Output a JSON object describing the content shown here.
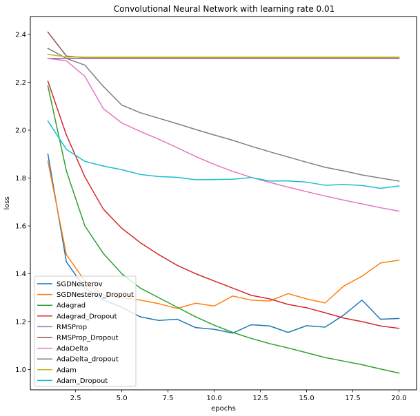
{
  "chart_data": {
    "type": "line",
    "title": "Convolutional Neural Network with learning rate 0.01",
    "xlabel": "epochs",
    "ylabel": "loss",
    "xlim": [
      0.05,
      20.95
    ],
    "ylim": [
      0.915,
      2.475
    ],
    "xticks": [
      2.5,
      5.0,
      7.5,
      10.0,
      12.5,
      15.0,
      17.5,
      20.0
    ],
    "xtick_labels": [
      "2.5",
      "5.0",
      "7.5",
      "10.0",
      "12.5",
      "15.0",
      "17.5",
      "20.0"
    ],
    "yticks": [
      1.0,
      1.2,
      1.4,
      1.6,
      1.8,
      2.0,
      2.2,
      2.4
    ],
    "ytick_labels": [
      "1.0",
      "1.2",
      "1.4",
      "1.6",
      "1.8",
      "2.0",
      "2.2",
      "2.4"
    ],
    "grid": false,
    "legend_position": "lower-left",
    "x": [
      1,
      2,
      3,
      4,
      5,
      6,
      7,
      8,
      9,
      10,
      11,
      12,
      13,
      14,
      15,
      16,
      17,
      18,
      19,
      20
    ],
    "series": [
      {
        "name": "SGDNesterov",
        "color": "#1f77b4",
        "values": [
          1.9,
          1.45,
          1.34,
          1.29,
          1.26,
          1.22,
          1.205,
          1.21,
          1.175,
          1.168,
          1.152,
          1.187,
          1.182,
          1.155,
          1.183,
          1.177,
          1.227,
          1.29,
          1.21,
          1.213
        ]
      },
      {
        "name": "SGDNesterov_Dropout",
        "color": "#ff7f0e",
        "values": [
          1.87,
          1.48,
          1.37,
          1.31,
          1.3,
          1.29,
          1.275,
          1.255,
          1.277,
          1.265,
          1.307,
          1.29,
          1.286,
          1.317,
          1.295,
          1.278,
          1.348,
          1.39,
          1.445,
          1.457
        ]
      },
      {
        "name": "Adagrad",
        "color": "#2ca02c",
        "values": [
          2.185,
          1.83,
          1.6,
          1.485,
          1.4,
          1.34,
          1.3,
          1.26,
          1.22,
          1.185,
          1.155,
          1.13,
          1.108,
          1.09,
          1.07,
          1.05,
          1.035,
          1.02,
          1.002,
          0.985
        ]
      },
      {
        "name": "Adagrad_Dropout",
        "color": "#d62728",
        "values": [
          2.205,
          1.98,
          1.805,
          1.67,
          1.59,
          1.53,
          1.48,
          1.435,
          1.4,
          1.37,
          1.34,
          1.31,
          1.295,
          1.272,
          1.258,
          1.237,
          1.215,
          1.2,
          1.182,
          1.172
        ]
      },
      {
        "name": "RMSProp",
        "color": "#9467bd",
        "values": [
          2.3,
          2.3,
          2.3,
          2.3,
          2.3,
          2.3,
          2.3,
          2.3,
          2.3,
          2.3,
          2.3,
          2.3,
          2.3,
          2.3,
          2.3,
          2.3,
          2.3,
          2.3,
          2.3,
          2.3
        ]
      },
      {
        "name": "RMSProp_Dropout",
        "color": "#8c564b",
        "values": [
          2.41,
          2.31,
          2.303,
          2.303,
          2.303,
          2.303,
          2.303,
          2.303,
          2.303,
          2.303,
          2.303,
          2.303,
          2.303,
          2.303,
          2.303,
          2.303,
          2.303,
          2.303,
          2.303,
          2.303
        ]
      },
      {
        "name": "AdaDelta",
        "color": "#e377c2",
        "values": [
          2.3,
          2.29,
          2.225,
          2.09,
          2.03,
          1.995,
          1.962,
          1.927,
          1.89,
          1.857,
          1.828,
          1.803,
          1.782,
          1.762,
          1.743,
          1.725,
          1.708,
          1.692,
          1.676,
          1.662
        ]
      },
      {
        "name": "AdaDelta_dropout",
        "color": "#7f7f7f",
        "values": [
          2.342,
          2.3,
          2.272,
          2.183,
          2.105,
          2.073,
          2.05,
          2.027,
          2.003,
          1.98,
          1.958,
          1.933,
          1.91,
          1.888,
          1.866,
          1.845,
          1.83,
          1.813,
          1.8,
          1.787
        ]
      },
      {
        "name": "Adam",
        "color": "#bcbd22",
        "values": [
          2.317,
          2.306,
          2.305,
          2.305,
          2.305,
          2.305,
          2.305,
          2.305,
          2.305,
          2.305,
          2.305,
          2.305,
          2.305,
          2.305,
          2.305,
          2.305,
          2.305,
          2.305,
          2.305,
          2.305
        ]
      },
      {
        "name": "Adam_Dropout",
        "color": "#17becf",
        "values": [
          2.038,
          1.92,
          1.87,
          1.85,
          1.835,
          1.815,
          1.806,
          1.803,
          1.793,
          1.794,
          1.795,
          1.802,
          1.788,
          1.788,
          1.783,
          1.77,
          1.773,
          1.769,
          1.757,
          1.767
        ]
      }
    ]
  }
}
